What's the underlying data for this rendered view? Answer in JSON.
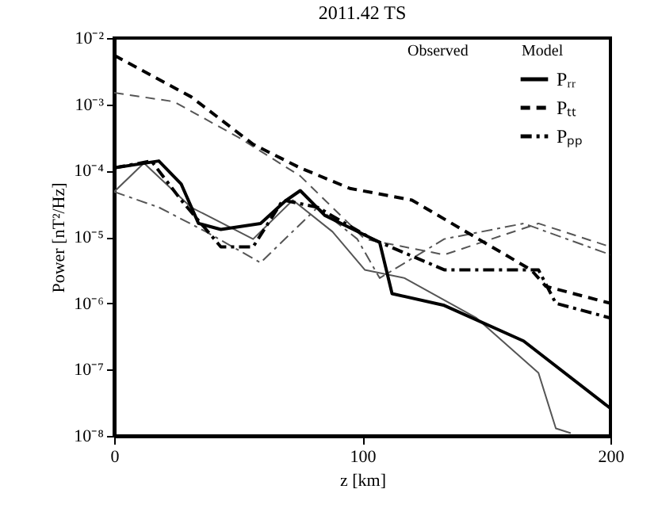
{
  "chart_data": {
    "type": "line",
    "title": "2011.42 TS",
    "xlabel": "z [km]",
    "ylabel": "Power [nT²/Hz]",
    "log": "y",
    "xlim": [
      0,
      200
    ],
    "xticks": [
      0,
      100,
      200
    ],
    "ylim": [
      1e-08,
      0.01
    ],
    "yticks": [
      {
        "value": 1e-08,
        "label": "10⁻⁸"
      },
      {
        "value": 1e-07,
        "label": "10⁻⁷"
      },
      {
        "value": 1e-06,
        "label": "10⁻⁶"
      },
      {
        "value": 1e-05,
        "label": "10⁻⁵"
      },
      {
        "value": 0.0001,
        "label": "10⁻⁴"
      },
      {
        "value": 0.001,
        "label": "10⁻³"
      },
      {
        "value": 0.01,
        "label": "10⁻²"
      }
    ],
    "legend": "top right",
    "annotations": [
      "Observed",
      "Model"
    ],
    "grid": false,
    "series": [
      {
        "name": "Pᵣᵣ",
        "color": "#000000",
        "line_style": "solid",
        "x": [
          0,
          18,
          27,
          34,
          43,
          59,
          69,
          75,
          85,
          107,
          112,
          133,
          165,
          200
        ],
        "values": [
          0.00011,
          0.00014,
          6.3e-05,
          1.6e-05,
          1.3e-05,
          1.6e-05,
          3.5e-05,
          5e-05,
          2.1e-05,
          8.3e-06,
          1.4e-06,
          9.3e-07,
          2.7e-07,
          2.6e-08
        ]
      },
      {
        "name": "Pₜₜ",
        "color": "#000000",
        "line_style": "dashed",
        "x": [
          0,
          31,
          56,
          75,
          95,
          120,
          168,
          174,
          200
        ],
        "values": [
          0.0055,
          0.0013,
          0.00025,
          0.00011,
          5.4e-05,
          3.6e-05,
          3.2e-06,
          1.8e-06,
          1e-06
        ]
      },
      {
        "name": "Pₚₚ",
        "color": "#000000",
        "line_style": "dashdot",
        "x": [
          0,
          15,
          27,
          43,
          56,
          68,
          82,
          104,
          133,
          171,
          178,
          200
        ],
        "values": [
          0.00011,
          0.00014,
          3.6e-05,
          7.1e-06,
          7.1e-06,
          3.6e-05,
          2.8e-05,
          9.3e-06,
          3.2e-06,
          3.2e-06,
          1e-06,
          6e-07
        ]
      },
      {
        "color": "#555555",
        "line_style": "solid",
        "x": [
          0,
          12,
          31,
          56,
          72,
          88,
          101,
          117,
          146,
          171,
          178,
          184
        ],
        "values": [
          4.8e-05,
          0.00013,
          2.8e-05,
          9.3e-06,
          3.6e-05,
          1.2e-05,
          3.2e-06,
          2.4e-06,
          6e-07,
          8.9e-08,
          1.3e-08,
          1.1e-08
        ]
      },
      {
        "color": "#555555",
        "line_style": "dashed",
        "x": [
          0,
          24,
          50,
          75,
          101,
          133,
          171,
          200
        ],
        "values": [
          0.0015,
          0.0011,
          0.00032,
          8.3e-05,
          9.3e-06,
          5.4e-06,
          1.6e-05,
          7.1e-06
        ]
      },
      {
        "color": "#555555",
        "line_style": "dashdot",
        "x": [
          0,
          18,
          37,
          59,
          82,
          98,
          107,
          133,
          165,
          200
        ],
        "values": [
          4.8e-05,
          2.8e-05,
          1.2e-05,
          4.1e-06,
          2.8e-05,
          9.3e-06,
          2.4e-06,
          9.3e-06,
          1.6e-05,
          5.4e-06
        ]
      }
    ]
  }
}
